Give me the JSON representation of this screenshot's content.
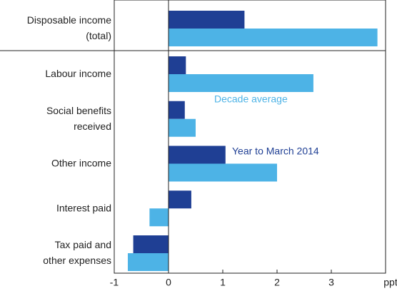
{
  "chart_data": {
    "type": "hbar",
    "categories": [
      [
        "Disposable income",
        "(total)"
      ],
      [
        "Labour income"
      ],
      [
        "Social benefits",
        "received"
      ],
      [
        "Other income"
      ],
      [
        "Interest paid"
      ],
      [
        "Tax paid and",
        "other expenses"
      ]
    ],
    "series": [
      {
        "name": "Year to March 2014",
        "color": "#1f3f94",
        "values": [
          1.4,
          0.32,
          0.3,
          1.05,
          0.42,
          -0.65
        ]
      },
      {
        "name": "Decade average",
        "color": "#4db3e6",
        "values": [
          3.85,
          2.67,
          0.5,
          2.0,
          -0.35,
          -0.75
        ]
      }
    ],
    "xlim": [
      -1,
      4
    ],
    "xticks": [
      -1,
      0,
      1,
      2,
      3
    ],
    "xlabel": "ppt"
  }
}
